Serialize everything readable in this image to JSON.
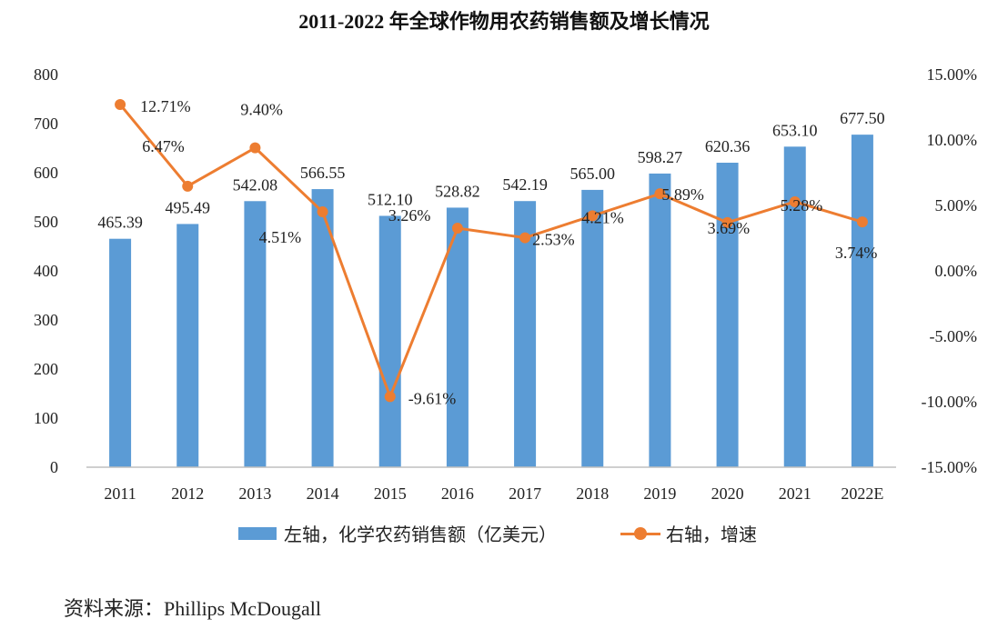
{
  "chart_data": {
    "type": "bar+line",
    "title": "2011-2022 年全球作物用农药销售额及增长情况",
    "categories": [
      "2011",
      "2012",
      "2013",
      "2014",
      "2015",
      "2016",
      "2017",
      "2018",
      "2019",
      "2020",
      "2021",
      "2022E"
    ],
    "series": [
      {
        "name": "左轴，化学农药销售额（亿美元）",
        "type": "bar",
        "axis": "left",
        "color": "#5b9bd5",
        "values": [
          465.39,
          495.49,
          542.08,
          566.55,
          512.1,
          528.82,
          542.19,
          565.0,
          598.27,
          620.36,
          653.1,
          677.5
        ],
        "labels": [
          "465.39",
          "495.49",
          "542.08",
          "566.55",
          "512.10",
          "528.82",
          "542.19",
          "565.00",
          "598.27",
          "620.36",
          "653.10",
          "677.50"
        ]
      },
      {
        "name": "右轴，增速",
        "type": "line",
        "axis": "right",
        "color": "#ed7d31",
        "values": [
          12.71,
          6.47,
          9.4,
          4.51,
          -9.61,
          3.26,
          2.53,
          4.21,
          5.89,
          3.69,
          5.28,
          3.74
        ],
        "labels": [
          "12.71%",
          "6.47%",
          "9.40%",
          "4.51%",
          "-9.61%",
          "3.26%",
          "2.53%",
          "4.21%",
          "5.89%",
          "3.69%",
          "5.28%",
          "3.74%"
        ]
      }
    ],
    "y_left": {
      "min": 0,
      "max": 800,
      "ticks": [
        "0",
        "100",
        "200",
        "300",
        "400",
        "500",
        "600",
        "700",
        "800"
      ]
    },
    "y_right": {
      "min": -15,
      "max": 15,
      "ticks": [
        "-15.00%",
        "-10.00%",
        "-5.00%",
        "0.00%",
        "5.00%",
        "10.00%",
        "15.00%"
      ]
    },
    "grid": false,
    "legend_position": "bottom"
  },
  "source": "资料来源：Phillips McDougall"
}
